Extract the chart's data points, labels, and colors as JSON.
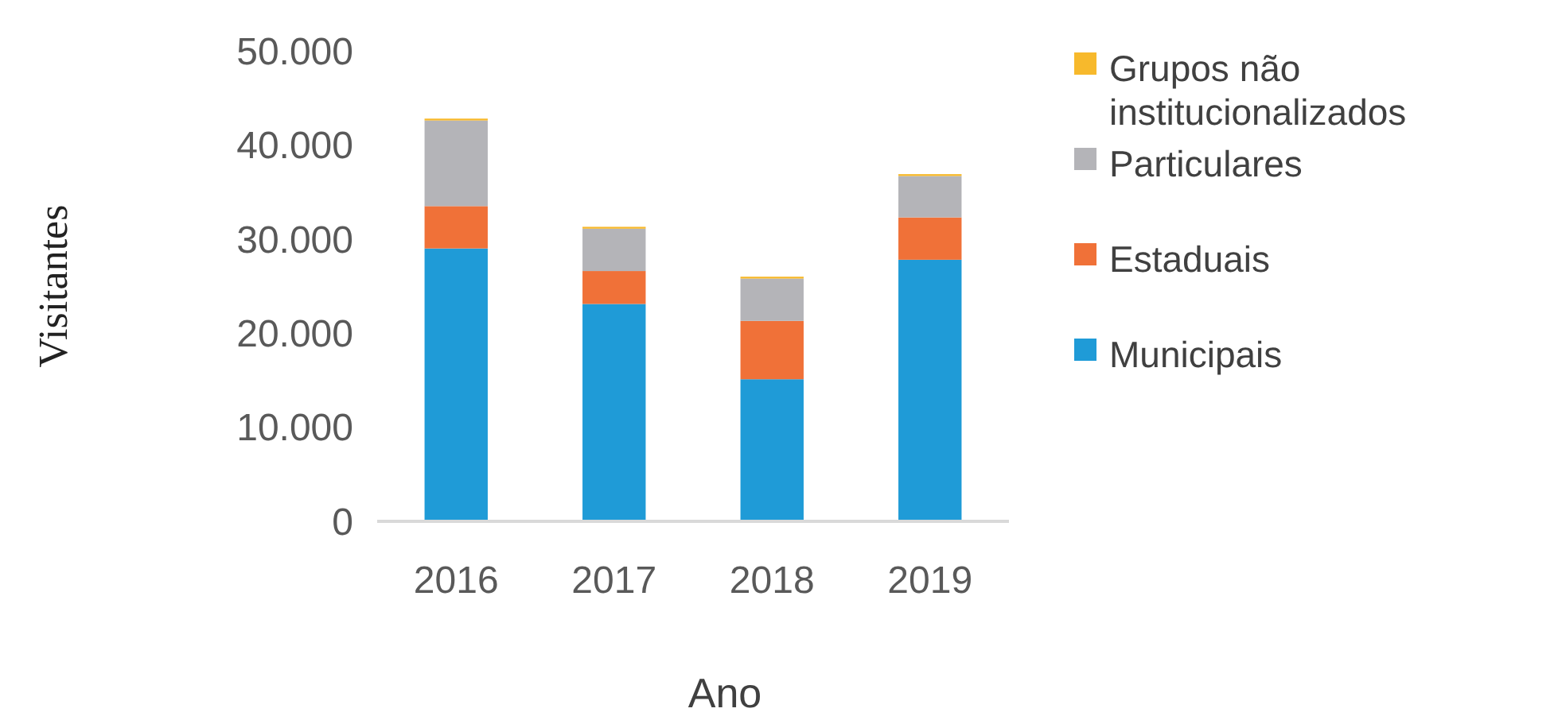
{
  "chart_data": {
    "type": "bar",
    "stacked": true,
    "xlabel": "Ano",
    "ylabel": "Visitantes",
    "categories": [
      "2016",
      "2017",
      "2018",
      "2019"
    ],
    "series": [
      {
        "name": "Municipais",
        "color": "#1f9bd7",
        "values": [
          29000,
          23100,
          15100,
          27800
        ]
      },
      {
        "name": "Estaduais",
        "color": "#f07138",
        "values": [
          4500,
          3500,
          6200,
          4500
        ]
      },
      {
        "name": "Particulares",
        "color": "#b4b4b8",
        "values": [
          9100,
          4500,
          4500,
          4400
        ]
      },
      {
        "name": "Grupos não institucionalizados",
        "color": "#f7b92c",
        "values": [
          200,
          200,
          200,
          200
        ]
      }
    ],
    "ylim": [
      0,
      50000
    ],
    "yticks": [
      {
        "value": 0,
        "label": "0"
      },
      {
        "value": 10000,
        "label": "10.000"
      },
      {
        "value": 20000,
        "label": "20.000"
      },
      {
        "value": 30000,
        "label": "30.000"
      },
      {
        "value": 40000,
        "label": "40.000"
      },
      {
        "value": 50000,
        "label": "50.000"
      }
    ],
    "grid": false,
    "legend": "right"
  }
}
